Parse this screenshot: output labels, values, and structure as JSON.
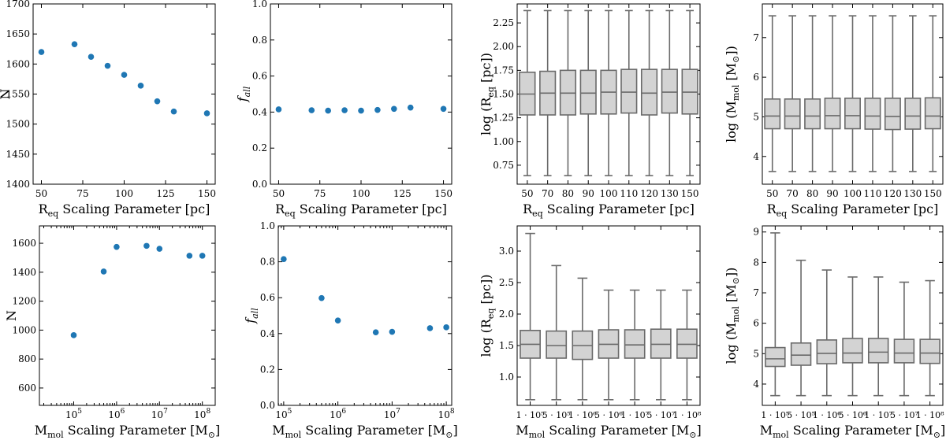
{
  "chart_data": [
    {
      "id": "r1c1",
      "type": "scatter",
      "xscale": "linear",
      "xlim": [
        45,
        155
      ],
      "ylim": [
        1400,
        1700
      ],
      "xticks": [
        {
          "v": 50,
          "t": "50"
        },
        {
          "v": 75,
          "t": "75"
        },
        {
          "v": 100,
          "t": "100"
        },
        {
          "v": 125,
          "t": "125"
        },
        {
          "v": 150,
          "t": "150"
        }
      ],
      "yticks": [
        {
          "v": 1400,
          "t": "1400"
        },
        {
          "v": 1450,
          "t": "1450"
        },
        {
          "v": 1500,
          "t": "1500"
        },
        {
          "v": 1550,
          "t": "1550"
        },
        {
          "v": 1600,
          "t": "1600"
        },
        {
          "v": 1650,
          "t": "1650"
        },
        {
          "v": 1700,
          "t": "1700"
        }
      ],
      "x": [
        50,
        70,
        80,
        90,
        100,
        110,
        120,
        130,
        150
      ],
      "y": [
        1620,
        1633,
        1612,
        1597,
        1582,
        1564,
        1538,
        1521,
        1518
      ],
      "xlabel": {
        "base": "R",
        "sub": "eq",
        "rest": " Scaling Parameter [pc]"
      },
      "ylabel": {
        "text": "N"
      }
    },
    {
      "id": "r1c2",
      "type": "scatter",
      "xscale": "linear",
      "xlim": [
        45,
        155
      ],
      "ylim": [
        0.0,
        1.0
      ],
      "xticks": [
        {
          "v": 50,
          "t": "50"
        },
        {
          "v": 75,
          "t": "75"
        },
        {
          "v": 100,
          "t": "100"
        },
        {
          "v": 125,
          "t": "125"
        },
        {
          "v": 150,
          "t": "150"
        }
      ],
      "yticks": [
        {
          "v": 0.0,
          "t": "0.0"
        },
        {
          "v": 0.2,
          "t": "0.2"
        },
        {
          "v": 0.4,
          "t": "0.4"
        },
        {
          "v": 0.6,
          "t": "0.6"
        },
        {
          "v": 0.8,
          "t": "0.8"
        },
        {
          "v": 1.0,
          "t": "1.0"
        }
      ],
      "x": [
        50,
        70,
        80,
        90,
        100,
        110,
        120,
        130,
        150
      ],
      "y": [
        0.415,
        0.41,
        0.408,
        0.41,
        0.408,
        0.412,
        0.418,
        0.425,
        0.418
      ],
      "xlabel": {
        "base": "R",
        "sub": "eq",
        "rest": " Scaling Parameter [pc]"
      },
      "ylabel": {
        "f": "f",
        "fsub": "all"
      }
    },
    {
      "id": "r1c3",
      "type": "boxplot",
      "ylim": [
        0.55,
        2.45
      ],
      "categories": [
        "50",
        "70",
        "80",
        "90",
        "100",
        "110",
        "120",
        "130",
        "150"
      ],
      "yticks": [
        {
          "v": 0.75,
          "t": "0.75"
        },
        {
          "v": 1.0,
          "t": "1.00"
        },
        {
          "v": 1.25,
          "t": "1.25"
        },
        {
          "v": 1.5,
          "t": "1.50"
        },
        {
          "v": 1.75,
          "t": "1.75"
        },
        {
          "v": 2.0,
          "t": "2.00"
        },
        {
          "v": 2.25,
          "t": "2.25"
        }
      ],
      "boxes": [
        {
          "wlo": 0.64,
          "q1": 1.28,
          "med": 1.5,
          "q3": 1.73,
          "whi": 2.38
        },
        {
          "wlo": 0.64,
          "q1": 1.28,
          "med": 1.51,
          "q3": 1.74,
          "whi": 2.38
        },
        {
          "wlo": 0.64,
          "q1": 1.28,
          "med": 1.51,
          "q3": 1.75,
          "whi": 2.38
        },
        {
          "wlo": 0.64,
          "q1": 1.29,
          "med": 1.51,
          "q3": 1.75,
          "whi": 2.38
        },
        {
          "wlo": 0.64,
          "q1": 1.29,
          "med": 1.52,
          "q3": 1.75,
          "whi": 2.38
        },
        {
          "wlo": 0.64,
          "q1": 1.3,
          "med": 1.52,
          "q3": 1.76,
          "whi": 2.38
        },
        {
          "wlo": 0.64,
          "q1": 1.28,
          "med": 1.51,
          "q3": 1.76,
          "whi": 2.38
        },
        {
          "wlo": 0.64,
          "q1": 1.3,
          "med": 1.52,
          "q3": 1.76,
          "whi": 2.38
        },
        {
          "wlo": 0.64,
          "q1": 1.29,
          "med": 1.52,
          "q3": 1.76,
          "whi": 2.38
        }
      ],
      "xlabel": {
        "base": "R",
        "sub": "eq",
        "rest": " Scaling Parameter [pc]"
      },
      "ylabel": {
        "pre": "log (R",
        "sub": "eq",
        "post": " [pc])"
      }
    },
    {
      "id": "r1c4",
      "type": "boxplot",
      "ylim": [
        3.3,
        7.85
      ],
      "categories": [
        "50",
        "70",
        "80",
        "90",
        "100",
        "110",
        "120",
        "130",
        "150"
      ],
      "yticks": [
        {
          "v": 4,
          "t": "4"
        },
        {
          "v": 5,
          "t": "5"
        },
        {
          "v": 6,
          "t": "6"
        },
        {
          "v": 7,
          "t": "7"
        }
      ],
      "boxes": [
        {
          "wlo": 3.62,
          "q1": 4.7,
          "med": 5.02,
          "q3": 5.45,
          "whi": 7.55
        },
        {
          "wlo": 3.62,
          "q1": 4.7,
          "med": 5.02,
          "q3": 5.45,
          "whi": 7.55
        },
        {
          "wlo": 3.62,
          "q1": 4.7,
          "med": 5.02,
          "q3": 5.45,
          "whi": 7.55
        },
        {
          "wlo": 3.62,
          "q1": 4.7,
          "med": 5.03,
          "q3": 5.47,
          "whi": 7.55
        },
        {
          "wlo": 3.62,
          "q1": 4.7,
          "med": 5.03,
          "q3": 5.47,
          "whi": 7.55
        },
        {
          "wlo": 3.62,
          "q1": 4.69,
          "med": 5.02,
          "q3": 5.47,
          "whi": 7.55
        },
        {
          "wlo": 3.62,
          "q1": 4.68,
          "med": 5.01,
          "q3": 5.47,
          "whi": 7.55
        },
        {
          "wlo": 3.62,
          "q1": 4.69,
          "med": 5.02,
          "q3": 5.47,
          "whi": 7.55
        },
        {
          "wlo": 3.62,
          "q1": 4.7,
          "med": 5.02,
          "q3": 5.48,
          "whi": 7.55
        }
      ],
      "xlabel": {
        "base": "R",
        "sub": "eq",
        "rest": " Scaling Parameter [pc]"
      },
      "ylabel": {
        "pre": "log (M",
        "sub": "mol",
        "post": " [M",
        "sun": "⊙",
        "post2": "])"
      }
    },
    {
      "id": "r2c1",
      "type": "scatter",
      "xscale": "log",
      "xlim": [
        4.2,
        8.3
      ],
      "ylim": [
        480,
        1720
      ],
      "xticks": [
        {
          "v": 5,
          "b": "10",
          "e": "5"
        },
        {
          "v": 6,
          "b": "10",
          "e": "6"
        },
        {
          "v": 7,
          "b": "10",
          "e": "7"
        },
        {
          "v": 8,
          "b": "10",
          "e": "8"
        }
      ],
      "yticks": [
        {
          "v": 600,
          "t": "600"
        },
        {
          "v": 800,
          "t": "800"
        },
        {
          "v": 1000,
          "t": "1000"
        },
        {
          "v": 1200,
          "t": "1200"
        },
        {
          "v": 1400,
          "t": "1400"
        },
        {
          "v": 1600,
          "t": "1600"
        }
      ],
      "x": [
        5,
        5.699,
        6,
        6.699,
        7,
        7.699,
        8
      ],
      "y": [
        965,
        1405,
        1575,
        1582,
        1562,
        1514,
        1514
      ],
      "xlabel": {
        "base": "M",
        "sub": "mol",
        "rest": " Scaling Parameter [M",
        "sun": "⊙",
        "end": "]"
      },
      "ylabel": {
        "text": "N"
      }
    },
    {
      "id": "r2c2",
      "type": "scatter",
      "xscale": "log",
      "xlim": [
        4.9,
        8.1
      ],
      "ylim": [
        0.0,
        1.0
      ],
      "xticks": [
        {
          "v": 5,
          "b": "10",
          "e": "5"
        },
        {
          "v": 6,
          "b": "10",
          "e": "6"
        },
        {
          "v": 7,
          "b": "10",
          "e": "7"
        },
        {
          "v": 8,
          "b": "10",
          "e": "8"
        }
      ],
      "yticks": [
        {
          "v": 0.0,
          "t": "0.0"
        },
        {
          "v": 0.2,
          "t": "0.2"
        },
        {
          "v": 0.4,
          "t": "0.4"
        },
        {
          "v": 0.6,
          "t": "0.6"
        },
        {
          "v": 0.8,
          "t": "0.8"
        },
        {
          "v": 1.0,
          "t": "1.0"
        }
      ],
      "x": [
        5,
        5.699,
        6,
        6.699,
        7,
        7.699,
        8
      ],
      "y": [
        0.815,
        0.598,
        0.473,
        0.407,
        0.41,
        0.43,
        0.435
      ],
      "xlabel": {
        "base": "M",
        "sub": "mol",
        "rest": " Scaling Parameter [M",
        "sun": "⊙",
        "end": "]"
      },
      "ylabel": {
        "f": "f",
        "fsub": "all"
      }
    },
    {
      "id": "r2c3",
      "type": "boxplot",
      "ylim": [
        0.55,
        3.4
      ],
      "categories": [
        "1 · 10⁵",
        "5 · 10⁵",
        "1 · 10⁶",
        "5 · 10⁶",
        "1 · 10⁷",
        "5 · 10⁷",
        "1 · 10⁸"
      ],
      "yticks": [
        {
          "v": 1.0,
          "t": "1.0"
        },
        {
          "v": 1.5,
          "t": "1.5"
        },
        {
          "v": 2.0,
          "t": "2.0"
        },
        {
          "v": 2.5,
          "t": "2.5"
        },
        {
          "v": 3.0,
          "t": "3.0"
        }
      ],
      "boxes": [
        {
          "wlo": 0.64,
          "q1": 1.3,
          "med": 1.52,
          "q3": 1.74,
          "whi": 3.28
        },
        {
          "wlo": 0.64,
          "q1": 1.3,
          "med": 1.5,
          "q3": 1.73,
          "whi": 2.77
        },
        {
          "wlo": 0.64,
          "q1": 1.28,
          "med": 1.5,
          "q3": 1.73,
          "whi": 2.57
        },
        {
          "wlo": 0.64,
          "q1": 1.3,
          "med": 1.52,
          "q3": 1.75,
          "whi": 2.38
        },
        {
          "wlo": 0.64,
          "q1": 1.3,
          "med": 1.51,
          "q3": 1.75,
          "whi": 2.38
        },
        {
          "wlo": 0.64,
          "q1": 1.3,
          "med": 1.52,
          "q3": 1.76,
          "whi": 2.38
        },
        {
          "wlo": 0.64,
          "q1": 1.3,
          "med": 1.52,
          "q3": 1.76,
          "whi": 2.38
        }
      ],
      "xlabel": {
        "base": "M",
        "sub": "mol",
        "rest": " Scaling Parameter [M",
        "sun": "⊙",
        "end": "]"
      },
      "ylabel": {
        "pre": "log (R",
        "sub": "eq",
        "post": " [pc])"
      }
    },
    {
      "id": "r2c4",
      "type": "boxplot",
      "ylim": [
        3.3,
        9.2
      ],
      "categories": [
        "1 · 10⁵",
        "5 · 10⁵",
        "1 · 10⁶",
        "5 · 10⁶",
        "1 · 10⁷",
        "5 · 10⁷",
        "1 · 10⁸"
      ],
      "yticks": [
        {
          "v": 4,
          "t": "4"
        },
        {
          "v": 5,
          "t": "5"
        },
        {
          "v": 6,
          "t": "6"
        },
        {
          "v": 7,
          "t": "7"
        },
        {
          "v": 8,
          "t": "8"
        },
        {
          "v": 9,
          "t": "9"
        }
      ],
      "boxes": [
        {
          "wlo": 3.62,
          "q1": 4.58,
          "med": 4.83,
          "q3": 5.2,
          "whi": 8.97
        },
        {
          "wlo": 3.62,
          "q1": 4.62,
          "med": 4.95,
          "q3": 5.35,
          "whi": 8.07
        },
        {
          "wlo": 3.62,
          "q1": 4.67,
          "med": 5.01,
          "q3": 5.45,
          "whi": 7.75
        },
        {
          "wlo": 3.62,
          "q1": 4.7,
          "med": 5.02,
          "q3": 5.5,
          "whi": 7.52
        },
        {
          "wlo": 3.62,
          "q1": 4.7,
          "med": 5.05,
          "q3": 5.5,
          "whi": 7.52
        },
        {
          "wlo": 3.62,
          "q1": 4.7,
          "med": 5.02,
          "q3": 5.47,
          "whi": 7.35
        },
        {
          "wlo": 3.62,
          "q1": 4.68,
          "med": 5.02,
          "q3": 5.47,
          "whi": 7.4
        }
      ],
      "xlabel": {
        "base": "M",
        "sub": "mol",
        "rest": " Scaling Parameter [M",
        "sun": "⊙",
        "end": "]"
      },
      "ylabel": {
        "pre": "log (M",
        "sub": "mol",
        "post": " [M",
        "sun": "⊙",
        "post2": "])"
      }
    }
  ],
  "colors": {
    "points": "#1f77b4",
    "box_fill": "#d3d3d3",
    "box_line": "#6a6a6a"
  }
}
